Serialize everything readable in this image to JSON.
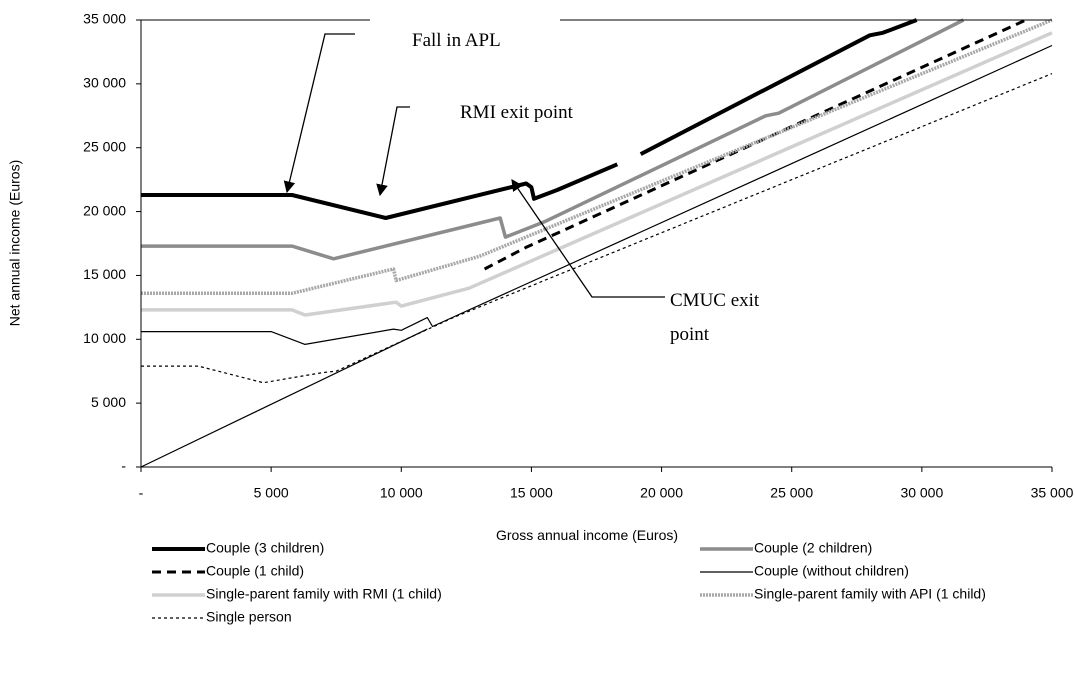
{
  "chart_data": {
    "type": "line",
    "x_label": "Gross annual income (Euros)",
    "y_label": "Net annual income (Euros)",
    "xlim": [
      0,
      35000
    ],
    "ylim": [
      0,
      35000
    ],
    "xticks": [
      {
        "value": 0,
        "label": "-"
      },
      {
        "value": 5000,
        "label": "5 000"
      },
      {
        "value": 10000,
        "label": "10 000"
      },
      {
        "value": 15000,
        "label": "15 000"
      },
      {
        "value": 20000,
        "label": "20 000"
      },
      {
        "value": 25000,
        "label": "25 000"
      },
      {
        "value": 30000,
        "label": "30 000"
      },
      {
        "value": 35000,
        "label": "35 000"
      }
    ],
    "yticks": [
      {
        "value": 0,
        "label": "-"
      },
      {
        "value": 5000,
        "label": "5 000"
      },
      {
        "value": 10000,
        "label": "10 000"
      },
      {
        "value": 15000,
        "label": "15 000"
      },
      {
        "value": 20000,
        "label": "20 000"
      },
      {
        "value": 25000,
        "label": "25 000"
      },
      {
        "value": 30000,
        "label": "30 000"
      },
      {
        "value": 35000,
        "label": "35 000"
      }
    ],
    "annotations": {
      "fall_apl": "Fall in APL",
      "rmi_exit": "RMI exit point",
      "cmuc_exit": [
        "CMUC exit",
        "point"
      ]
    },
    "reference": {
      "x": [
        0,
        11000
      ],
      "values": [
        0,
        10800
      ],
      "color": "#000000",
      "width": 1.2
    },
    "series": [
      {
        "name": "Couple (3 children)",
        "color": "#000000",
        "width": 4,
        "dash": "none",
        "x": [
          0,
          5800,
          9400,
          14800,
          15000,
          15100,
          16000,
          18300,
          null,
          19200,
          28000,
          28500,
          29800
        ],
        "values": [
          21300,
          21300,
          19500,
          22200,
          21900,
          21000,
          21700,
          23700,
          null,
          24500,
          33800,
          34000,
          35000
        ]
      },
      {
        "name": "Couple (2 children)",
        "color": "#8c8c8c",
        "width": 3.5,
        "dash": "none",
        "x": [
          0,
          5800,
          7400,
          13800,
          14000,
          15500,
          24000,
          24500,
          31600
        ],
        "values": [
          17300,
          17300,
          16300,
          19500,
          18000,
          19200,
          27500,
          27700,
          35000
        ]
      },
      {
        "name": "Couple (1 child)",
        "color": "#000000",
        "width": 3,
        "dash": "9,6",
        "x": [
          13200,
          14800,
          34000
        ],
        "values": [
          15500,
          17200,
          35000
        ]
      },
      {
        "name": "Couple (without children)",
        "color": "#000000",
        "width": 1.2,
        "dash": "none",
        "x": [
          0,
          5000,
          6300,
          9700,
          10000,
          11000,
          11200,
          35000
        ],
        "values": [
          10600,
          10600,
          9600,
          10800,
          10700,
          11700,
          11000,
          33000
        ]
      },
      {
        "name": "Single-parent family with RMI (1 child)",
        "color": "#d0d0d0",
        "width": 3.5,
        "dash": "none",
        "x": [
          0,
          5800,
          6300,
          9800,
          10000,
          12600,
          35000
        ],
        "values": [
          12300,
          12300,
          11900,
          12900,
          12600,
          14000,
          34000
        ]
      },
      {
        "name": "Single-parent family with API (1 child)",
        "color": "#a8a8a8",
        "width": 3.5,
        "dash": "2,1",
        "x": [
          0,
          5800,
          9700,
          9800,
          13000,
          35000
        ],
        "values": [
          13600,
          13600,
          15500,
          14600,
          16500,
          35000
        ]
      },
      {
        "name": "Single person",
        "color": "#000000",
        "width": 1.2,
        "dash": "3,3",
        "x": [
          0,
          2200,
          4700,
          7000,
          7500,
          12000,
          35000
        ],
        "values": [
          7900,
          7900,
          6600,
          7400,
          7500,
          11700,
          30800
        ]
      }
    ]
  }
}
